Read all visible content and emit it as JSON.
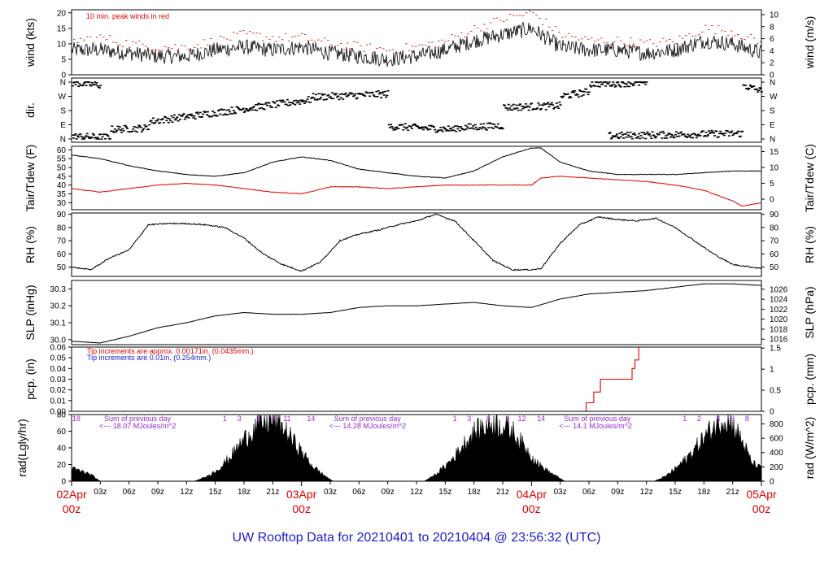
{
  "title": "UW Rooftop Data for 20210401  to  20210404 @ 23:56:32  (UTC)",
  "colors": {
    "axis": "#000000",
    "red": "#e00000",
    "blue": "#1b1bd0",
    "purple": "#9a2ad0"
  },
  "x_axis": {
    "day_labels": [
      {
        "hour": 0,
        "top": "02Apr",
        "bottom": "00z"
      },
      {
        "hour": 24,
        "top": "03Apr",
        "bottom": "00z"
      },
      {
        "hour": 48,
        "top": "04Apr",
        "bottom": "00z"
      },
      {
        "hour": 72,
        "top": "05Apr",
        "bottom": "00z"
      }
    ],
    "hour_ticks": [
      {
        "hour": 3,
        "label": "03z"
      },
      {
        "hour": 6,
        "label": "06z"
      },
      {
        "hour": 9,
        "label": "09z"
      },
      {
        "hour": 12,
        "label": "12z"
      },
      {
        "hour": 15,
        "label": "15z"
      },
      {
        "hour": 18,
        "label": "18z"
      },
      {
        "hour": 21,
        "label": "21z"
      },
      {
        "hour": 27,
        "label": "03z"
      },
      {
        "hour": 30,
        "label": "06z"
      },
      {
        "hour": 33,
        "label": "09z"
      },
      {
        "hour": 36,
        "label": "12z"
      },
      {
        "hour": 39,
        "label": "15z"
      },
      {
        "hour": 42,
        "label": "18z"
      },
      {
        "hour": 45,
        "label": "21z"
      },
      {
        "hour": 51,
        "label": "03z"
      },
      {
        "hour": 54,
        "label": "06z"
      },
      {
        "hour": 57,
        "label": "09z"
      },
      {
        "hour": 60,
        "label": "12z"
      },
      {
        "hour": 63,
        "label": "15z"
      },
      {
        "hour": 66,
        "label": "18z"
      },
      {
        "hour": 69,
        "label": "21z"
      }
    ]
  },
  "chart_data": [
    {
      "type": "line",
      "id": "wind",
      "ylabel_left": "wind (kts)",
      "ylabel_right": "wind (m/s)",
      "ylim": [
        0,
        21
      ],
      "left_ticks": [
        0,
        5,
        10,
        15,
        20
      ],
      "right_ticks": [
        0,
        2,
        4,
        6,
        8,
        10
      ],
      "right_scale": 0.5144,
      "annotation": "10 min. peak winds in red",
      "series": [
        {
          "name": "wind speed",
          "color": "#000000",
          "x": [
            0,
            3,
            6,
            9,
            12,
            15,
            18,
            21,
            24,
            27,
            30,
            33,
            36,
            39,
            42,
            45,
            48,
            51,
            54,
            57,
            60,
            63,
            66,
            69,
            72
          ],
          "values": [
            8,
            8,
            7,
            6,
            6,
            8,
            9,
            8,
            9,
            7,
            6,
            5,
            6,
            8,
            11,
            13,
            15,
            9,
            8,
            8,
            7,
            8,
            11,
            10,
            7
          ]
        },
        {
          "name": "10 min. peak winds",
          "color": "#e00000",
          "x": [
            0,
            3,
            6,
            9,
            12,
            15,
            18,
            21,
            24,
            27,
            30,
            33,
            36,
            39,
            42,
            45,
            48,
            51,
            54,
            57,
            60,
            63,
            66,
            69,
            72
          ],
          "values": [
            11,
            12,
            10,
            9,
            9,
            11,
            13,
            12,
            12,
            10,
            9,
            8,
            9,
            11,
            15,
            18,
            20,
            13,
            11,
            11,
            10,
            11,
            15,
            14,
            10
          ]
        }
      ]
    },
    {
      "type": "scatter",
      "id": "dir",
      "ylabel_left": "dir.",
      "ylabel_right": "",
      "tick_labels": [
        "N",
        "W",
        "S",
        "E",
        "N"
      ],
      "ylim": [
        0,
        360
      ],
      "series": [
        {
          "name": "direction",
          "color": "#000000",
          "segments": [
            {
              "x": [
                0,
                3
              ],
              "values": [
                355,
                340
              ]
            },
            {
              "x": [
                0,
                4
              ],
              "values": [
                15,
                10
              ]
            },
            {
              "x": [
                4,
                8
              ],
              "values": [
                60,
                70
              ]
            },
            {
              "x": [
                8,
                13
              ],
              "values": [
                110,
                150
              ]
            },
            {
              "x": [
                13,
                19
              ],
              "values": [
                150,
                200
              ]
            },
            {
              "x": [
                19,
                25
              ],
              "values": [
                200,
                250
              ]
            },
            {
              "x": [
                25,
                33
              ],
              "values": [
                265,
                285
              ]
            },
            {
              "x": [
                33,
                40
              ],
              "values": [
                80,
                60
              ]
            },
            {
              "x": [
                40,
                45
              ],
              "values": [
                70,
                85
              ]
            },
            {
              "x": [
                45,
                51
              ],
              "values": [
                200,
                210
              ]
            },
            {
              "x": [
                51,
                54
              ],
              "values": [
                270,
                300
              ]
            },
            {
              "x": [
                54,
                60
              ],
              "values": [
                350,
                355
              ]
            },
            {
              "x": [
                56,
                70
              ],
              "values": [
                20,
                35
              ]
            },
            {
              "x": [
                70,
                72
              ],
              "values": [
                340,
                300
              ]
            }
          ]
        }
      ]
    },
    {
      "type": "line",
      "id": "temp",
      "ylabel_left": "Tair/Tdew (F)",
      "ylabel_right": "Tair/Tdew (C)",
      "ylim": [
        26,
        62
      ],
      "left_ticks": [
        30,
        35,
        40,
        45,
        50,
        55,
        60
      ],
      "right_ticks": [
        0,
        5,
        10,
        15
      ],
      "series": [
        {
          "name": "Tair",
          "color": "#000000",
          "x": [
            0,
            3,
            6,
            9,
            12,
            15,
            18,
            21,
            24,
            27,
            30,
            33,
            36,
            39,
            42,
            45,
            48,
            49,
            51,
            54,
            57,
            60,
            63,
            66,
            69,
            72
          ],
          "values": [
            57,
            55,
            51,
            48,
            46,
            45,
            47,
            53,
            56,
            54,
            49,
            47,
            45,
            44,
            48,
            56,
            61,
            61,
            53,
            48,
            46,
            46,
            46,
            47,
            48,
            48
          ]
        },
        {
          "name": "Tdew",
          "color": "#e00000",
          "x": [
            0,
            3,
            6,
            9,
            12,
            15,
            18,
            21,
            24,
            27,
            30,
            33,
            36,
            39,
            42,
            45,
            48,
            49,
            51,
            54,
            57,
            60,
            63,
            66,
            69,
            70,
            72
          ],
          "values": [
            38,
            36,
            38,
            40,
            41,
            40,
            38,
            36,
            35,
            39,
            39,
            38,
            39,
            40,
            40,
            40,
            40,
            44,
            45,
            44,
            43,
            42,
            40,
            37,
            31,
            28,
            30
          ]
        }
      ]
    },
    {
      "type": "line",
      "id": "rh",
      "ylabel_left": "RH (%)",
      "ylabel_right": "RH (%)",
      "ylim": [
        43,
        91
      ],
      "left_ticks": [
        50,
        60,
        70,
        80,
        90
      ],
      "right_ticks": [
        50,
        60,
        70,
        80,
        90
      ],
      "series": [
        {
          "name": "RH",
          "color": "#000000",
          "x": [
            0,
            2,
            4,
            6,
            8,
            10,
            12,
            14,
            16,
            18,
            20,
            22,
            24,
            26,
            28,
            30,
            32,
            34,
            36,
            38,
            40,
            42,
            44,
            46,
            48,
            49,
            51,
            53,
            55,
            57,
            59,
            61,
            63,
            65,
            67,
            69,
            71,
            72
          ],
          "values": [
            50,
            48,
            57,
            63,
            82,
            83,
            83,
            82,
            80,
            72,
            60,
            52,
            47,
            54,
            70,
            75,
            78,
            82,
            85,
            90,
            85,
            70,
            55,
            48,
            48,
            49,
            68,
            82,
            88,
            86,
            85,
            87,
            80,
            70,
            60,
            52,
            50,
            49
          ]
        }
      ]
    },
    {
      "type": "line",
      "id": "slp",
      "ylabel_left": "SLP (inHg)",
      "ylabel_right": "SLP (hPa)",
      "ylim": [
        29.97,
        30.35
      ],
      "left_ticks": [
        30.0,
        30.1,
        30.2,
        30.3
      ],
      "right_ticks": [
        1016,
        1018,
        1020,
        1022,
        1024,
        1026
      ],
      "series": [
        {
          "name": "SLP",
          "color": "#000000",
          "x": [
            0,
            3,
            6,
            9,
            12,
            15,
            18,
            21,
            24,
            27,
            30,
            33,
            36,
            39,
            42,
            45,
            48,
            51,
            54,
            57,
            60,
            63,
            66,
            69,
            72
          ],
          "values": [
            29.99,
            29.98,
            30.02,
            30.07,
            30.1,
            30.14,
            30.16,
            30.15,
            30.15,
            30.16,
            30.19,
            30.2,
            30.2,
            30.21,
            30.22,
            30.2,
            30.19,
            30.24,
            30.27,
            30.28,
            30.29,
            30.31,
            30.33,
            30.33,
            30.32
          ]
        }
      ]
    },
    {
      "type": "area",
      "id": "pcp",
      "ylabel_left": "pcp. (in)",
      "ylabel_right": "pcp. (mm)",
      "ylim": [
        0,
        0.06
      ],
      "left_ticks": [
        0.0,
        0.01,
        0.02,
        0.03,
        0.04,
        0.05,
        0.06
      ],
      "right_ticks": [
        0,
        0.5,
        1,
        1.5
      ],
      "annotations": [
        {
          "text": "Tip increments are approx. 0.00171in. (0.0435mm.)",
          "color": "#e00000"
        },
        {
          "text": "Tip increments are 0.01in. (0.254mm.)",
          "color": "#1b1bd0"
        }
      ],
      "series": [
        {
          "name": "accumulated precipitation",
          "color": "#e00000",
          "x": [
            0,
            53.7,
            53.7,
            54.5,
            54.5,
            55.2,
            55.2,
            58.5,
            58.5,
            58.8,
            58.8,
            59.2,
            59.2,
            72
          ],
          "values": [
            0,
            0,
            0.008,
            0.008,
            0.018,
            0.018,
            0.03,
            0.03,
            0.04,
            0.04,
            0.048,
            0.048,
            0.06,
            0.06
          ]
        }
      ]
    },
    {
      "type": "area",
      "id": "rad",
      "ylabel_left": "rad(Lgly/hr)",
      "ylabel_right": "rad (W/m^2)",
      "ylim": [
        0,
        80
      ],
      "left_ticks": [
        0,
        20,
        40,
        60,
        80
      ],
      "right_ticks": [
        0,
        200,
        400,
        600,
        800
      ],
      "daily_sums": [
        {
          "text": "Sum of previous day",
          "value": "<--- 18.07 MJoules/m^2"
        },
        {
          "text": "Sum of previous day",
          "value": "<--- 14.28 MJoules/m^2"
        },
        {
          "text": "Sum of previous day",
          "value": "<--- 14.1 MJoules/m^2"
        }
      ],
      "hour_marks": [
        {
          "hour": 0.5,
          "label": "18"
        },
        {
          "hour": 16,
          "label": "1"
        },
        {
          "hour": 17.5,
          "label": "3"
        },
        {
          "hour": 19.5,
          "label": "5"
        },
        {
          "hour": 21,
          "label": "8"
        },
        {
          "hour": 22.5,
          "label": "11"
        },
        {
          "hour": 25,
          "label": "14"
        },
        {
          "hour": 40,
          "label": "1"
        },
        {
          "hour": 41.5,
          "label": "3"
        },
        {
          "hour": 43.5,
          "label": "6"
        },
        {
          "hour": 45.5,
          "label": "9"
        },
        {
          "hour": 47,
          "label": "12"
        },
        {
          "hour": 49,
          "label": "14"
        },
        {
          "hour": 64,
          "label": "1"
        },
        {
          "hour": 65.5,
          "label": "2"
        },
        {
          "hour": 67.5,
          "label": "4"
        },
        {
          "hour": 69,
          "label": "6"
        },
        {
          "hour": 70.5,
          "label": "8"
        }
      ],
      "series": [
        {
          "name": "solar radiation",
          "color": "#000000",
          "x": [
            0,
            1,
            2,
            3,
            12.8,
            14,
            15,
            16,
            17,
            18,
            19,
            20,
            21,
            22,
            23,
            24,
            25,
            26,
            27.3,
            36.8,
            38,
            39,
            40,
            41,
            42,
            43,
            44,
            45,
            46,
            47,
            48,
            49,
            50,
            51.5,
            60.8,
            62,
            63,
            64,
            65,
            66,
            67,
            68,
            69,
            70,
            71,
            72
          ],
          "values": [
            15,
            12,
            8,
            0,
            0,
            5,
            12,
            22,
            35,
            50,
            62,
            70,
            72,
            65,
            50,
            35,
            20,
            10,
            0,
            0,
            8,
            18,
            30,
            45,
            58,
            65,
            70,
            66,
            60,
            45,
            30,
            18,
            10,
            0,
            0,
            6,
            15,
            25,
            38,
            52,
            65,
            75,
            68,
            48,
            22,
            15
          ]
        }
      ]
    }
  ]
}
